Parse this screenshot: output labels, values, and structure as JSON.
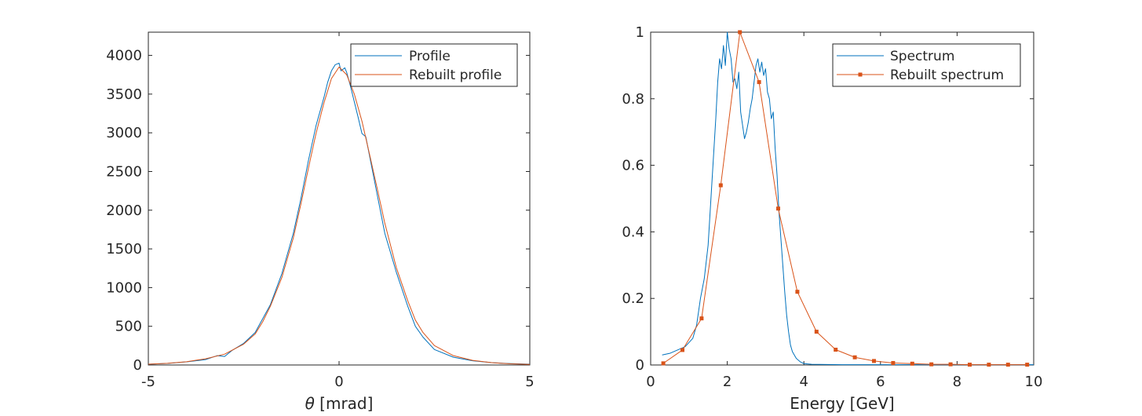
{
  "chart_data": [
    {
      "type": "line",
      "xlabel_symbol": "θ",
      "xlabel_text": " [mrad]",
      "ylabel": "",
      "xlim": [
        -5,
        5
      ],
      "ylim": [
        0,
        4300
      ],
      "xticks": [
        -5,
        0,
        5
      ],
      "xtick_labels": [
        "-5",
        "0",
        "5"
      ],
      "yticks": [
        0,
        500,
        1000,
        1500,
        2000,
        2500,
        3000,
        3500,
        4000
      ],
      "ytick_labels": [
        "0",
        "500",
        "1000",
        "1500",
        "2000",
        "2500",
        "3000",
        "3500",
        "4000"
      ],
      "grid": false,
      "legend_position": "top-right",
      "series": [
        {
          "name": "Profile",
          "color": "#0072BD",
          "x": [
            -5,
            -4.5,
            -4,
            -3.5,
            -3.2,
            -3,
            -2.8,
            -2.5,
            -2.2,
            -2,
            -1.8,
            -1.5,
            -1.2,
            -1,
            -0.8,
            -0.6,
            -0.4,
            -0.3,
            -0.2,
            -0.1,
            0,
            0.05,
            0.1,
            0.15,
            0.2,
            0.3,
            0.4,
            0.5,
            0.6,
            0.7,
            0.8,
            1,
            1.2,
            1.5,
            1.8,
            2,
            2.2,
            2.5,
            3,
            3.5,
            4,
            4.5,
            5
          ],
          "y": [
            10,
            20,
            40,
            70,
            120,
            110,
            190,
            280,
            420,
            600,
            780,
            1180,
            1700,
            2150,
            2650,
            3100,
            3450,
            3650,
            3800,
            3880,
            3900,
            3800,
            3820,
            3840,
            3780,
            3600,
            3400,
            3200,
            2990,
            2950,
            2700,
            2200,
            1700,
            1200,
            760,
            500,
            360,
            200,
            100,
            55,
            30,
            18,
            10
          ]
        },
        {
          "name": "Rebuilt profile",
          "color": "#D95319",
          "x": [
            -5,
            -4.5,
            -4,
            -3.5,
            -3,
            -2.5,
            -2.2,
            -2,
            -1.8,
            -1.5,
            -1.2,
            -1,
            -0.8,
            -0.6,
            -0.4,
            -0.2,
            0,
            0.2,
            0.4,
            0.6,
            0.8,
            1,
            1.2,
            1.5,
            1.8,
            2,
            2.2,
            2.5,
            3,
            3.5,
            4,
            4.5,
            5
          ],
          "y": [
            10,
            22,
            42,
            80,
            140,
            270,
            400,
            560,
            760,
            1130,
            1640,
            2080,
            2550,
            3000,
            3380,
            3700,
            3850,
            3750,
            3500,
            3150,
            2720,
            2280,
            1830,
            1260,
            830,
            580,
            420,
            250,
            120,
            60,
            30,
            15,
            8
          ]
        }
      ]
    },
    {
      "type": "line",
      "xlabel": "Energy [GeV]",
      "ylabel": "",
      "xlim": [
        0,
        10
      ],
      "ylim": [
        0,
        1
      ],
      "xticks": [
        0,
        2,
        4,
        6,
        8,
        10
      ],
      "xtick_labels": [
        "0",
        "2",
        "4",
        "6",
        "8",
        "10"
      ],
      "yticks": [
        0,
        0.2,
        0.4,
        0.6,
        0.8,
        1
      ],
      "ytick_labels": [
        "0",
        "0.2",
        "0.4",
        "0.6",
        "0.8",
        "1"
      ],
      "grid": false,
      "legend_position": "top-right",
      "series": [
        {
          "name": "Spectrum",
          "color": "#0072BD",
          "x": [
            0.3,
            0.5,
            0.7,
            0.9,
            1.1,
            1.2,
            1.3,
            1.35,
            1.4,
            1.5,
            1.6,
            1.7,
            1.75,
            1.8,
            1.85,
            1.9,
            1.95,
            2,
            2.05,
            2.1,
            2.15,
            2.2,
            2.25,
            2.3,
            2.35,
            2.4,
            2.45,
            2.5,
            2.55,
            2.6,
            2.65,
            2.7,
            2.75,
            2.8,
            2.85,
            2.9,
            2.95,
            3,
            3.05,
            3.1,
            3.15,
            3.2,
            3.25,
            3.3,
            3.35,
            3.4,
            3.45,
            3.5,
            3.55,
            3.6,
            3.65,
            3.7,
            3.8,
            3.9,
            4,
            4.2,
            5,
            6,
            7,
            8,
            9,
            10
          ],
          "y": [
            0.03,
            0.035,
            0.045,
            0.055,
            0.08,
            0.12,
            0.2,
            0.23,
            0.26,
            0.36,
            0.55,
            0.74,
            0.85,
            0.92,
            0.89,
            0.96,
            0.9,
            1.0,
            0.95,
            0.92,
            0.85,
            0.86,
            0.83,
            0.88,
            0.76,
            0.72,
            0.68,
            0.7,
            0.73,
            0.77,
            0.8,
            0.85,
            0.9,
            0.92,
            0.88,
            0.91,
            0.87,
            0.89,
            0.82,
            0.8,
            0.74,
            0.76,
            0.65,
            0.57,
            0.46,
            0.38,
            0.3,
            0.22,
            0.15,
            0.1,
            0.06,
            0.04,
            0.02,
            0.01,
            0.004,
            0.002,
            0.001,
            0.001,
            0.001,
            0.001,
            0.001,
            0.001
          ]
        },
        {
          "name": "Rebuilt spectrum",
          "color": "#D95319",
          "x": [
            0.33,
            0.83,
            1.33,
            1.83,
            2.33,
            2.83,
            3.33,
            3.83,
            4.33,
            4.83,
            5.33,
            5.83,
            6.33,
            6.83,
            7.33,
            7.83,
            8.33,
            8.83,
            9.33,
            9.83
          ],
          "y": [
            0.005,
            0.045,
            0.14,
            0.54,
            1.0,
            0.85,
            0.47,
            0.22,
            0.1,
            0.046,
            0.023,
            0.012,
            0.006,
            0.004,
            0.002,
            0.002,
            0.001,
            0.001,
            0.001,
            0.001
          ]
        }
      ]
    }
  ]
}
